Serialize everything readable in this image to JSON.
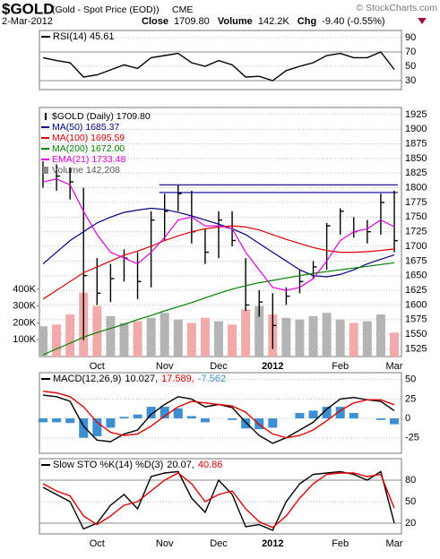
{
  "header": {
    "symbol": "$GOLD",
    "name": "(Gold - Spot Price (EOD))",
    "exchange": "CME",
    "copyright": "© StockCharts.com",
    "date": "2-Mar-2012",
    "close_label": "Close",
    "close": "1709.80",
    "volume_label": "Volume",
    "volume": "142.2K",
    "chg_label": "Chg",
    "chg": "-9.40 (-0.55%)"
  },
  "chart_data": [
    {
      "type": "line",
      "ylim": [
        17.5,
        100
      ],
      "yticks": [
        30,
        50,
        70,
        90
      ],
      "hlines": [
        30,
        70
      ],
      "grid": true,
      "series": [
        {
          "name": "RSI(14) 45.61",
          "color": "#000000",
          "values": [
            62,
            58,
            55,
            35,
            38,
            45,
            52,
            47,
            62,
            65,
            68,
            55,
            50,
            58,
            52,
            35,
            36,
            30,
            44,
            50,
            55,
            65,
            68,
            62,
            62,
            70,
            45.61
          ]
        }
      ]
    },
    {
      "type": "stock",
      "ylim": [
        1512,
        1937
      ],
      "yticks": [
        1525,
        1550,
        1575,
        1600,
        1625,
        1650,
        1675,
        1700,
        1725,
        1750,
        1775,
        1800,
        1825,
        1850,
        1875,
        1900,
        1925
      ],
      "y2lim": [
        0,
        1480000
      ],
      "y2ticks": [
        {
          "value": 100000,
          "label": "100K"
        },
        {
          "value": 200000,
          "label": "200K"
        },
        {
          "value": 300000,
          "label": "300K"
        },
        {
          "value": 400000,
          "label": "400K"
        }
      ],
      "hlines": [
        1805,
        1792
      ],
      "grid": true,
      "categories": [
        null,
        null,
        null,
        null,
        "Oct",
        null,
        null,
        null,
        null,
        "Nov",
        null,
        null,
        null,
        "Dec",
        null,
        null,
        null,
        "2012",
        null,
        null,
        null,
        null,
        "Feb",
        null,
        null,
        null,
        "Mar"
      ],
      "series": [
        {
          "name": "$GOLD (Daily) 1709.80",
          "type": "ohlc",
          "color": "#000000",
          "high": [
            1845,
            1840,
            1835,
            1800,
            1680,
            1670,
            1695,
            1690,
            1760,
            1790,
            1805,
            1795,
            1730,
            1760,
            1760,
            1680,
            1625,
            1620,
            1630,
            1660,
            1675,
            1740,
            1765,
            1750,
            1745,
            1790,
            1795
          ],
          "low": [
            1800,
            1795,
            1780,
            1540,
            1600,
            1605,
            1640,
            1610,
            1630,
            1710,
            1760,
            1705,
            1670,
            1680,
            1700,
            1590,
            1580,
            1525,
            1600,
            1620,
            1645,
            1660,
            1720,
            1715,
            1705,
            1720,
            1690
          ],
          "values": [
            1830,
            1820,
            1810,
            1650,
            1620,
            1645,
            1680,
            1640,
            1745,
            1760,
            1790,
            1725,
            1690,
            1745,
            1710,
            1600,
            1605,
            1565,
            1615,
            1640,
            1665,
            1735,
            1760,
            1725,
            1725,
            1775,
            1709.8
          ]
        },
        {
          "name": "MA(50) 1685.37",
          "type": "line",
          "color": "#000080",
          "values": [
            1670,
            1690,
            1710,
            1725,
            1740,
            1750,
            1758,
            1762,
            1765,
            1763,
            1758,
            1752,
            1745,
            1738,
            1730,
            1720,
            1705,
            1690,
            1675,
            1660,
            1650,
            1648,
            1652,
            1660,
            1670,
            1678,
            1685.37
          ]
        },
        {
          "name": "MA(100) 1695.59",
          "type": "line",
          "color": "#e00000",
          "values": [
            1610,
            1625,
            1640,
            1655,
            1665,
            1675,
            1685,
            1692,
            1700,
            1710,
            1718,
            1725,
            1730,
            1733,
            1735,
            1733,
            1728,
            1720,
            1712,
            1705,
            1698,
            1693,
            1690,
            1690,
            1691,
            1693,
            1695.59
          ]
        },
        {
          "name": "MA(200) 1672.00",
          "type": "line",
          "color": "#008000",
          "values": [
            1515,
            1525,
            1535,
            1545,
            1553,
            1560,
            1567,
            1575,
            1582,
            1590,
            1597,
            1604,
            1612,
            1620,
            1627,
            1633,
            1638,
            1642,
            1646,
            1650,
            1654,
            1657,
            1660,
            1663,
            1666,
            1669,
            1672
          ]
        },
        {
          "name": "EMA(21) 1733.48",
          "type": "line",
          "color": "#e000e0",
          "values": [
            1810,
            1815,
            1805,
            1760,
            1720,
            1690,
            1680,
            1670,
            1690,
            1715,
            1745,
            1750,
            1735,
            1735,
            1730,
            1690,
            1660,
            1630,
            1625,
            1630,
            1645,
            1675,
            1710,
            1725,
            1730,
            1745,
            1733.48
          ]
        },
        {
          "name": "Volume 142,208",
          "type": "bar",
          "axis": "y2",
          "color": "#b4b4b4",
          "down_color": "#f2a9a9",
          "values": [
            180000,
            190000,
            250000,
            380000,
            300000,
            240000,
            200000,
            210000,
            230000,
            260000,
            220000,
            200000,
            230000,
            210000,
            190000,
            280000,
            300000,
            250000,
            230000,
            220000,
            240000,
            260000,
            220000,
            200000,
            210000,
            250000,
            142208
          ]
        }
      ]
    },
    {
      "type": "line",
      "title": "MACD(12,26,9)",
      "ylim": [
        -45,
        59
      ],
      "yticks": [
        -25,
        0,
        25,
        50
      ],
      "grid": true,
      "series": [
        {
          "name": "10.027,",
          "type": "line",
          "color": "#000000",
          "values": [
            30,
            28,
            22,
            -10,
            -28,
            -30,
            -20,
            -15,
            5,
            18,
            28,
            25,
            15,
            18,
            14,
            -5,
            -22,
            -32,
            -25,
            -15,
            -5,
            12,
            25,
            27,
            24,
            22,
            10.027
          ]
        },
        {
          "name": "17.589,",
          "type": "line",
          "color": "#e00000",
          "values": [
            35,
            33,
            28,
            15,
            -5,
            -18,
            -22,
            -20,
            -10,
            3,
            15,
            22,
            20,
            18,
            16,
            8,
            -8,
            -20,
            -25,
            -22,
            -15,
            -3,
            10,
            20,
            24,
            24,
            17.589
          ]
        },
        {
          "name": "-7.562",
          "type": "histogram",
          "color": "#3c8fd0",
          "values": [
            -5,
            -5,
            -6,
            -25,
            -23,
            -12,
            2,
            5,
            15,
            15,
            13,
            3,
            -5,
            0,
            -2,
            -13,
            -14,
            -12,
            0,
            7,
            10,
            15,
            15,
            7,
            0,
            -2,
            -7.562
          ]
        }
      ]
    },
    {
      "type": "line",
      "title": "Slow STO %K(14) %D(3)",
      "ylim": [
        5,
        110
      ],
      "yticks": [
        20,
        50,
        80
      ],
      "hlines": [
        20,
        80
      ],
      "grid": true,
      "series": [
        {
          "name": "20.07,",
          "type": "line",
          "color": "#000000",
          "values": [
            70,
            60,
            50,
            12,
            20,
            45,
            60,
            40,
            85,
            90,
            92,
            55,
            35,
            80,
            60,
            15,
            18,
            10,
            50,
            75,
            88,
            90,
            92,
            88,
            80,
            92,
            20.07
          ]
        },
        {
          "name": "40.86",
          "type": "line",
          "color": "#e00000",
          "values": [
            75,
            65,
            58,
            30,
            18,
            30,
            45,
            50,
            65,
            80,
            90,
            75,
            50,
            60,
            65,
            40,
            22,
            14,
            30,
            55,
            75,
            88,
            90,
            90,
            85,
            88,
            40.86
          ]
        }
      ]
    }
  ]
}
